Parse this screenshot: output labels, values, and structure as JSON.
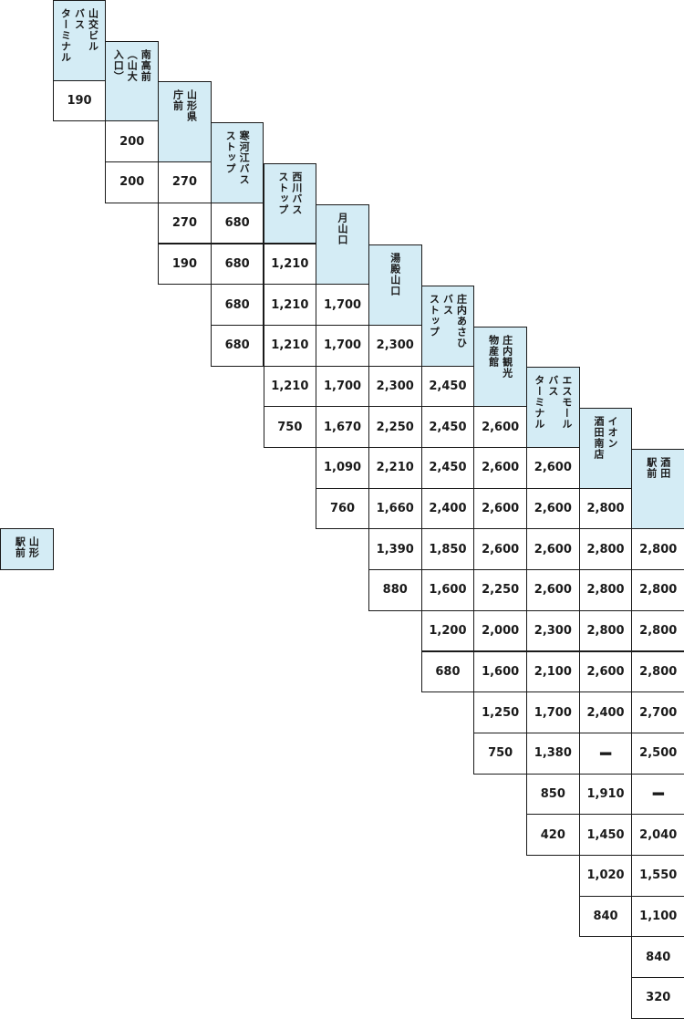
{
  "stations": [
    {
      "name": "山形駅前",
      "lines": [
        "山形",
        "駅前"
      ]
    },
    {
      "name": "山交ビルバスターミナル",
      "lines": [
        "山交ビル",
        "バス",
        "ターミナル"
      ]
    },
    {
      "name": "南高前（山大入口）",
      "lines": [
        "南高前",
        "（山大",
        "入口）"
      ]
    },
    {
      "name": "山形県庁前",
      "lines": [
        "山形県",
        "庁前"
      ]
    },
    {
      "name": "寒河江バスストップ",
      "lines": [
        "寒河江バス",
        "ストップ"
      ]
    },
    {
      "name": "西川バスストップ",
      "lines": [
        "西川バス",
        "ストップ"
      ]
    },
    {
      "name": "月山口",
      "lines": [
        "月山口"
      ]
    },
    {
      "name": "湯殿山口",
      "lines": [
        "湯殿山口"
      ]
    },
    {
      "name": "庄内あさひバスストップ",
      "lines": [
        "庄内あさひ",
        "バス",
        "ストップ"
      ]
    },
    {
      "name": "庄内観光物産館",
      "lines": [
        "庄内観光",
        "物産館"
      ]
    },
    {
      "name": "エスモールバスターミナル",
      "lines": [
        "エスモール",
        "バス",
        "ターミナル"
      ]
    },
    {
      "name": "イオン酒田南店",
      "lines": [
        "イオン",
        "酒田南店"
      ]
    },
    {
      "name": "酒田駅前",
      "lines": [
        "酒田",
        "駅前"
      ]
    }
  ],
  "fares": [
    [
      "190"
    ],
    [
      "200",
      "200"
    ],
    [
      "270",
      "270",
      "190"
    ],
    [
      "680",
      "680",
      "680",
      "680"
    ],
    [
      "1,210",
      "1,210",
      "1,210",
      "1,210",
      "750"
    ],
    [
      "1,700",
      "1,700",
      "1,700",
      "1,670",
      "1,090",
      "760"
    ],
    [
      "2,300",
      "2,300",
      "2,250",
      "2,210",
      "1,660",
      "1,390",
      "880"
    ],
    [
      "2,450",
      "2,450",
      "2,450",
      "2,400",
      "1,850",
      "1,600",
      "1,200",
      "680"
    ],
    [
      "2,600",
      "2,600",
      "2,600",
      "2,600",
      "2,250",
      "2,000",
      "1,600",
      "1,250",
      "750"
    ],
    [
      "2,600",
      "2,600",
      "2,600",
      "2,600",
      "2,300",
      "2,100",
      "1,700",
      "1,380",
      "850",
      "420"
    ],
    [
      "2,800",
      "2,800",
      "2,800",
      "2,800",
      "2,600",
      "2,400",
      "━",
      "1,910",
      "1,450",
      "1,020",
      "840"
    ],
    [
      "2,800",
      "2,800",
      "2,800",
      "2,800",
      "2,700",
      "2,500",
      "━",
      "2,040",
      "1,550",
      "1,100",
      "840",
      "320"
    ]
  ]
}
